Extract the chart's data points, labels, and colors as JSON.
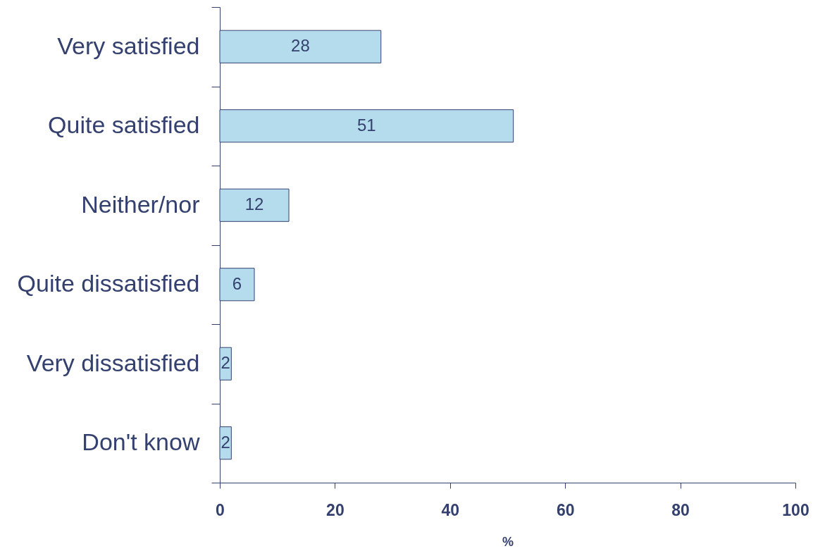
{
  "chart_data": {
    "type": "bar",
    "orientation": "horizontal",
    "categories": [
      "Very satisfied",
      "Quite satisfied",
      "Neither/nor",
      "Quite dissatisfied",
      "Very dissatisfied",
      "Don't know"
    ],
    "values": [
      28,
      51,
      12,
      6,
      2,
      2
    ],
    "color": "#b4dcec",
    "xlabel": "%",
    "xlim": [
      0,
      100
    ],
    "xticks": [
      0,
      20,
      40,
      60,
      80,
      100
    ],
    "data_labels": true
  }
}
